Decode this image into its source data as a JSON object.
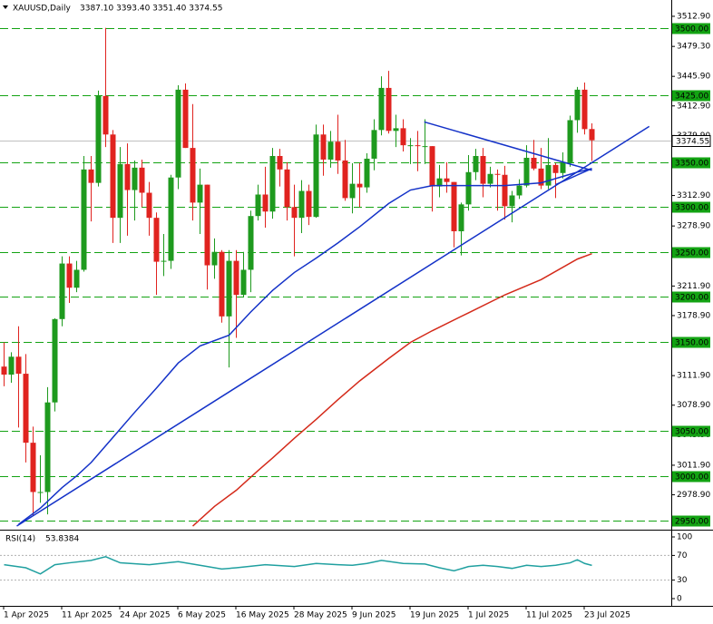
{
  "chart_data": [
    {
      "type": "candlestick",
      "title": "XAUUSD,Daily",
      "subtitle": "3387.10 3393.40 3351.40 3374.55",
      "categories": [
        "1 Apr 2025",
        null,
        null,
        null,
        null,
        null,
        null,
        null,
        "11 Apr 2025",
        null,
        null,
        null,
        null,
        null,
        null,
        null,
        "24 Apr 2025",
        null,
        null,
        null,
        null,
        null,
        null,
        null,
        "6 May 2025",
        null,
        null,
        null,
        null,
        null,
        null,
        null,
        "16 May 2025",
        null,
        null,
        null,
        null,
        null,
        null,
        null,
        "28 May 2025",
        null,
        null,
        null,
        null,
        null,
        null,
        null,
        "9 Jun 2025",
        null,
        null,
        null,
        null,
        null,
        null,
        null,
        "19 Jun 2025",
        null,
        null,
        null,
        null,
        null,
        null,
        null,
        "1 Jul 2025",
        null,
        null,
        null,
        null,
        null,
        null,
        null,
        "11 Jul 2025",
        null,
        null,
        null,
        null,
        null,
        null,
        null,
        "23 Jul 2025",
        null
      ],
      "open": [
        3122,
        3113,
        3133,
        3114,
        3037,
        2982,
        2982,
        3082,
        3175,
        3237,
        3210,
        3230,
        3342,
        3327,
        3424,
        3381,
        3288,
        3348,
        3319,
        3344,
        3316,
        3288,
        3239,
        3240,
        3333,
        3431,
        3366,
        3305,
        3325,
        3235,
        3250,
        3178,
        3240,
        3202,
        3230,
        3290,
        3314,
        3295,
        3357,
        3342,
        3300,
        3288,
        3318,
        3289,
        3381,
        3353,
        3373,
        3352,
        3310,
        3326,
        3322,
        3354,
        3386,
        3433,
        3385,
        3388,
        3369,
        3369,
        3368,
        3368,
        3323,
        3332,
        3328,
        3273,
        3303,
        3339,
        3357,
        3326,
        3337,
        3336,
        3301,
        3313,
        3324,
        3355,
        3343,
        3324,
        3347,
        3338,
        3350,
        3397,
        3431,
        3387.1
      ],
      "high": [
        3149,
        3138,
        3167,
        3136,
        3055,
        3023,
        3099,
        3176,
        3245,
        3245,
        3240,
        3357,
        3357,
        3430,
        3500,
        3386,
        3367,
        3371,
        3352,
        3353,
        3328,
        3294,
        3270,
        3336,
        3436,
        3438,
        3415,
        3343,
        3325,
        3265,
        3252,
        3252,
        3252,
        3250,
        3296,
        3325,
        3345,
        3366,
        3365,
        3350,
        3325,
        3330,
        3325,
        3392,
        3392,
        3385,
        3403,
        3375,
        3349,
        3349,
        3360,
        3398,
        3446,
        3452,
        3403,
        3398,
        3377,
        3385,
        3398,
        3368,
        3347,
        3350,
        3328,
        3305,
        3358,
        3365,
        3366,
        3345,
        3342,
        3346,
        3318,
        3331,
        3369,
        3375,
        3366,
        3377,
        3349,
        3361,
        3402,
        3434,
        3439,
        3393.4
      ],
      "low": [
        3100,
        3104,
        3054,
        3015,
        2956,
        2970,
        2957,
        3072,
        3167,
        3193,
        3205,
        3228,
        3284,
        3323,
        3367,
        3260,
        3260,
        3268,
        3285,
        3300,
        3268,
        3202,
        3223,
        3231,
        3320,
        3366,
        3285,
        3270,
        3208,
        3220,
        3171,
        3121,
        3154,
        3200,
        3205,
        3285,
        3277,
        3287,
        3323,
        3285,
        3245,
        3271,
        3280,
        3288,
        3335,
        3344,
        3337,
        3307,
        3293,
        3300,
        3316,
        3341,
        3380,
        3382,
        3367,
        3362,
        3348,
        3340,
        3348,
        3295,
        3311,
        3316,
        3255,
        3246,
        3296,
        3330,
        3311,
        3322,
        3296,
        3286,
        3283,
        3309,
        3322,
        3341,
        3320,
        3320,
        3310,
        3332,
        3345,
        3383,
        3381,
        3351.4
      ],
      "close": [
        3113,
        3133,
        3114,
        3037,
        2982,
        2982,
        3082,
        3175,
        3237,
        3210,
        3230,
        3342,
        3327,
        3424,
        3381,
        3288,
        3348,
        3319,
        3344,
        3316,
        3288,
        3239,
        3240,
        3333,
        3431,
        3366,
        3305,
        3325,
        3235,
        3250,
        3178,
        3240,
        3202,
        3230,
        3290,
        3314,
        3295,
        3357,
        3342,
        3300,
        3288,
        3318,
        3289,
        3381,
        3353,
        3373,
        3352,
        3310,
        3326,
        3322,
        3354,
        3386,
        3433,
        3385,
        3388,
        3369,
        3369,
        3368,
        3368,
        3323,
        3332,
        3328,
        3273,
        3303,
        3339,
        3357,
        3326,
        3337,
        3336,
        3301,
        3313,
        3324,
        3355,
        3343,
        3324,
        3347,
        3338,
        3350,
        3397,
        3431,
        3387,
        3374.55
      ],
      "up_color": "#1e9a1e",
      "down_color": "#e0231f",
      "lines": [
        {
          "color": "#1432c8",
          "x": [
            2,
            5,
            8,
            10,
            12,
            15,
            18,
            21,
            24,
            27,
            31,
            34,
            37,
            40,
            43,
            46,
            49,
            53,
            56,
            59,
            64,
            69,
            74,
            79,
            81
          ],
          "values": [
            2946,
            2964,
            2987,
            3000,
            3015,
            3043,
            3071,
            3098,
            3126,
            3145,
            3157,
            3183,
            3207,
            3227,
            3243,
            3260,
            3278,
            3304,
            3319,
            3324,
            3324,
            3324,
            3327,
            3339,
            3343
          ]
        },
        {
          "color": "#d42a1a",
          "x": [
            26,
            29,
            32,
            35,
            37,
            40,
            43,
            46,
            49,
            53,
            56,
            59,
            64,
            69,
            74,
            79,
            81
          ],
          "values": [
            2944,
            2966,
            2984,
            3006,
            3020,
            3042,
            3063,
            3085,
            3106,
            3131,
            3149,
            3162,
            3182,
            3202,
            3219,
            3242,
            3248
          ]
        },
        {
          "color": "#1432c8",
          "x": [
            1.75,
            88.9
          ],
          "values": [
            2944,
            3390
          ]
        },
        {
          "color": "#1432c8",
          "x": [
            57.9,
            81
          ],
          "values": [
            3395,
            3341
          ]
        },
        {
          "color": "#1432c8",
          "x": [
            76,
            81
          ],
          "values": [
            3325,
            3343
          ]
        }
      ],
      "levels": [
        {
          "value": 3500,
          "label": "3500.00"
        },
        {
          "value": 3425,
          "label": "3425.00"
        },
        {
          "value": 3350,
          "label": "3350.00"
        },
        {
          "value": 3300,
          "label": "3300.00"
        },
        {
          "value": 3250,
          "label": "3250.00"
        },
        {
          "value": 3200,
          "label": "3200.00"
        },
        {
          "value": 3150,
          "label": "3150.00"
        },
        {
          "value": 3050,
          "label": "3050.00"
        },
        {
          "value": 3000,
          "label": "3000.00"
        },
        {
          "value": 2950,
          "label": "2950.00"
        }
      ],
      "level_color": "#13a313",
      "ylim": [
        2942,
        3523
      ],
      "yticks": [
        {
          "value": 3512.9,
          "label": "3512.90"
        },
        {
          "value": 3479.3,
          "label": "3479.30"
        },
        {
          "value": 3445.9,
          "label": "3445.90"
        },
        {
          "value": 3412.9,
          "label": "3412.90"
        },
        {
          "value": 3379.9,
          "label": "3379.90"
        },
        {
          "value": 3346,
          "label": "3346.00"
        },
        {
          "value": 3312.9,
          "label": "3312.90"
        },
        {
          "value": 3278.9,
          "label": "3278.90"
        },
        {
          "value": 3245.9,
          "label": "3245.90"
        },
        {
          "value": 3211.9,
          "label": "3211.90"
        },
        {
          "value": 3178.9,
          "label": "3178.90"
        },
        {
          "value": 3145.9,
          "label": "3145.90"
        },
        {
          "value": 3111.9,
          "label": "3111.90"
        },
        {
          "value": 3078.9,
          "label": "3078.90"
        },
        {
          "value": 3045.9,
          "label": "3045.90"
        },
        {
          "value": 3011.9,
          "label": "3011.90"
        },
        {
          "value": 2978.9,
          "label": "2978.90"
        },
        {
          "value": 2945.9,
          "label": "2945.90"
        }
      ]
    },
    {
      "type": "line",
      "title": "RSI(14)",
      "color": "#20a0a0",
      "x": [
        0,
        3,
        5,
        7,
        9,
        12,
        14,
        16,
        20,
        24,
        28,
        30,
        32,
        36,
        40,
        43,
        46,
        48,
        50,
        52,
        55,
        58,
        60,
        62,
        64,
        66,
        68,
        70,
        72,
        74,
        76,
        78,
        79,
        80,
        81
      ],
      "values": [
        55,
        50,
        40,
        55,
        58,
        62,
        68,
        58,
        55,
        60,
        52,
        48,
        50,
        55,
        52,
        57,
        55,
        54,
        57,
        62,
        57,
        56,
        50,
        45,
        52,
        54,
        52,
        49,
        54,
        52,
        54,
        58,
        63,
        57,
        53.8384
      ],
      "xlim": [
        -0.5,
        91.5
      ],
      "ylim": [
        0,
        100
      ],
      "yticks": [
        0,
        30,
        70,
        100
      ]
    }
  ]
}
